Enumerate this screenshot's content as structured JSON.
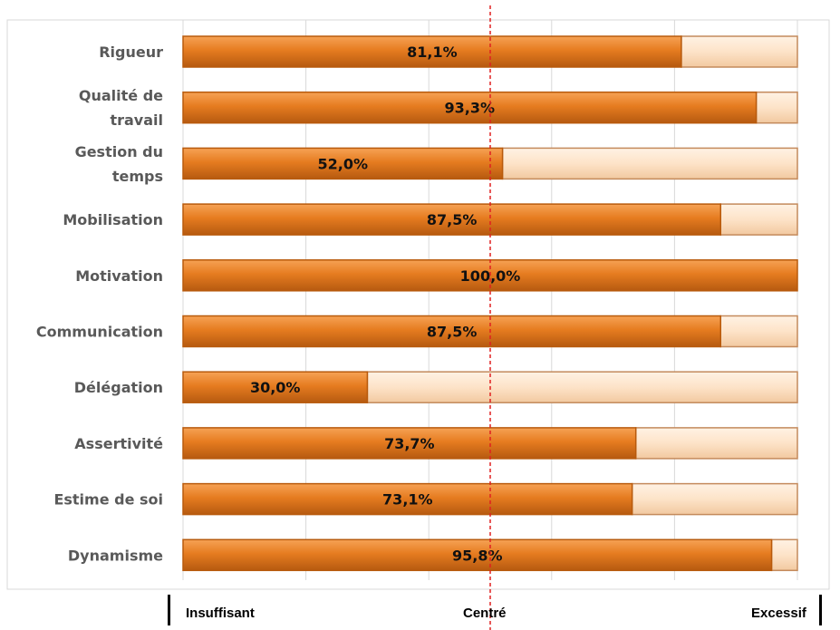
{
  "chart_data": {
    "type": "bar",
    "orientation": "horizontal",
    "stacked_to": 100,
    "categories": [
      "Rigueur",
      "Qualité de travail",
      "Gestion du temps",
      "Mobilisation",
      "Motivation",
      "Communication",
      "Délégation",
      "Assertivité",
      "Estime de soi",
      "Dynamisme"
    ],
    "category_lines": [
      [
        "Rigueur"
      ],
      [
        "Qualité de",
        "travail"
      ],
      [
        "Gestion du",
        "temps"
      ],
      [
        "Mobilisation"
      ],
      [
        "Motivation"
      ],
      [
        "Communication"
      ],
      [
        "Délégation"
      ],
      [
        "Assertivité"
      ],
      [
        "Estime de soi"
      ],
      [
        "Dynamisme"
      ]
    ],
    "values": [
      81.1,
      93.3,
      52.0,
      87.5,
      100.0,
      87.5,
      30.0,
      73.7,
      73.1,
      95.8
    ],
    "labels": [
      "81,1%",
      "93,3%",
      "52,0%",
      "87,5%",
      "100,0%",
      "87,5%",
      "30,0%",
      "73,7%",
      "73,1%",
      "95,8%"
    ],
    "xlim": [
      0,
      100
    ],
    "reference_line": 50,
    "grid": true,
    "colors": {
      "fill": "#e57a1f",
      "fill_light": "#f39a45",
      "fill_dark": "#b85a0c",
      "remainder": "#fbe3cc",
      "remainder_edge": "#c48a5c",
      "reference": "#e02020"
    }
  },
  "scale_labels": {
    "left": "Insuffisant",
    "center": "Centré",
    "right": "Excessif"
  }
}
